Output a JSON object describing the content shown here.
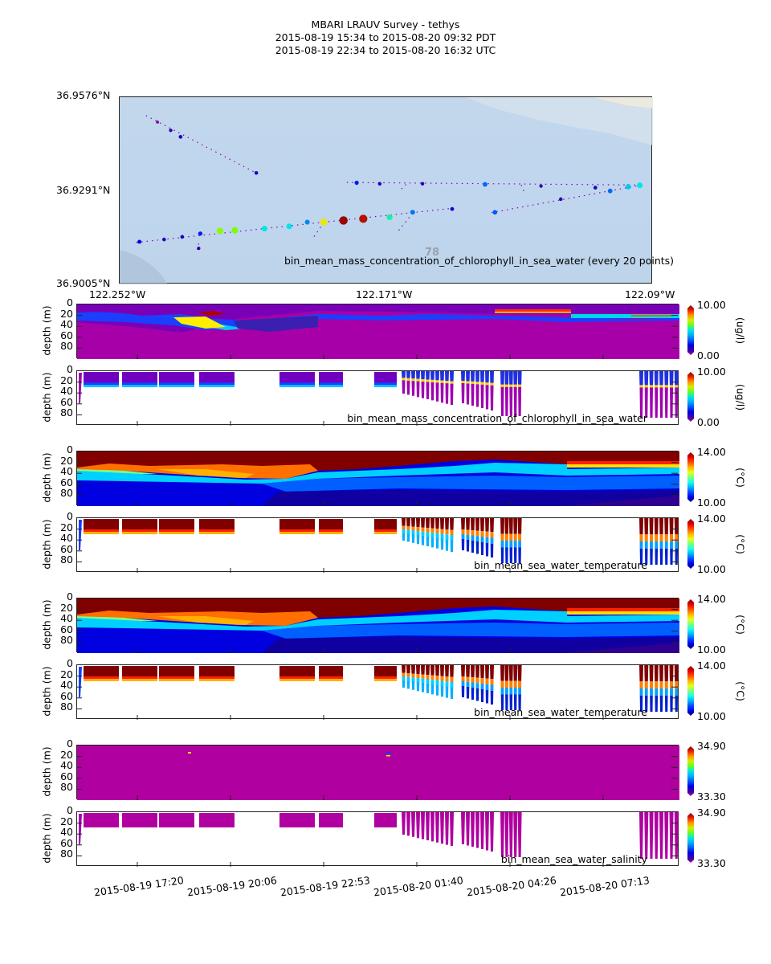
{
  "header": {
    "title": "MBARI LRAUV Survey - tethys",
    "pdt_range": "2015-08-19 15:34  to  2015-08-20 09:32 PDT",
    "utc_range": "2015-08-19 22:34  to  2015-08-20 16:32 UTC"
  },
  "chart_data": [
    {
      "type": "scatter",
      "title": "bin_mean_mass_concentration_of_chlorophyll_in_sea_water (every 20 points)",
      "lat_ticks": [
        "36.9576°N",
        "36.9291°N",
        "36.9005°N"
      ],
      "lon_ticks": [
        "122.252°W",
        "122.171°W",
        "122.09°W"
      ],
      "lat_range": [
        36.9005,
        36.9576
      ],
      "lon_range": [
        -122.252,
        -122.09
      ],
      "contour_label": "78",
      "points": [
        {
          "lon": -122.2405,
          "lat": 36.95,
          "v": 0.3
        },
        {
          "lon": -122.2365,
          "lat": 36.9475,
          "v": 1.0
        },
        {
          "lon": -122.2335,
          "lat": 36.9455,
          "v": 1.5
        },
        {
          "lon": -122.2105,
          "lat": 36.9345,
          "v": 1.4
        },
        {
          "lon": -122.18,
          "lat": 36.9315,
          "v": 2.3
        },
        {
          "lon": -122.173,
          "lat": 36.9312,
          "v": 1.3
        },
        {
          "lon": -122.16,
          "lat": 36.9312,
          "v": 1.2
        },
        {
          "lon": -122.141,
          "lat": 36.931,
          "v": 3.2
        },
        {
          "lon": -122.124,
          "lat": 36.9305,
          "v": 1.0
        },
        {
          "lon": -122.1075,
          "lat": 36.93,
          "v": 1.5
        },
        {
          "lon": -122.0975,
          "lat": 36.9303,
          "v": 4.5
        },
        {
          "lon": -122.094,
          "lat": 36.9307,
          "v": 5.0
        },
        {
          "lon": -122.103,
          "lat": 36.929,
          "v": 3.2
        },
        {
          "lon": -122.118,
          "lat": 36.9265,
          "v": 1.2
        },
        {
          "lon": -122.138,
          "lat": 36.9225,
          "v": 3.0
        },
        {
          "lon": -122.151,
          "lat": 36.9235,
          "v": 1.6
        },
        {
          "lon": -122.163,
          "lat": 36.9225,
          "v": 3.3
        },
        {
          "lon": -122.17,
          "lat": 36.921,
          "v": 5.3
        },
        {
          "lon": -122.178,
          "lat": 36.9205,
          "v": 9.5
        },
        {
          "lon": -122.184,
          "lat": 36.92,
          "v": 9.8
        },
        {
          "lon": -122.19,
          "lat": 36.9195,
          "v": 7.2
        },
        {
          "lon": -122.195,
          "lat": 36.9195,
          "v": 3.5
        },
        {
          "lon": -122.2005,
          "lat": 36.9182,
          "v": 5.0
        },
        {
          "lon": -122.208,
          "lat": 36.9175,
          "v": 5.0
        },
        {
          "lon": -122.217,
          "lat": 36.917,
          "v": 6.2
        },
        {
          "lon": -122.2215,
          "lat": 36.9168,
          "v": 6.4
        },
        {
          "lon": -122.2275,
          "lat": 36.916,
          "v": 2.3
        },
        {
          "lon": -122.233,
          "lat": 36.915,
          "v": 1.5
        },
        {
          "lon": -122.2385,
          "lat": 36.9142,
          "v": 1.4
        },
        {
          "lon": -122.246,
          "lat": 36.9135,
          "v": 1.9
        },
        {
          "lon": -122.228,
          "lat": 36.9115,
          "v": 1.0
        }
      ]
    },
    {
      "type": "heatmap",
      "variant": "interpolated",
      "ylabel": "depth (m)",
      "yticks": [
        "0",
        "20",
        "40",
        "60",
        "80"
      ],
      "colorbar": {
        "min": "0.00",
        "max": "10.00",
        "units": "(ug/l)",
        "cmap": "spectral"
      },
      "label": ""
    },
    {
      "type": "heatmap",
      "variant": "measured",
      "ylabel": "depth (m)",
      "yticks": [
        "0",
        "20",
        "40",
        "60",
        "80"
      ],
      "colorbar": {
        "min": "0.00",
        "max": "10.00",
        "units": "(ug/l)",
        "cmap": "spectral"
      },
      "label": "bin_mean_mass_concentration_of_chlorophyll_in_sea_water"
    },
    {
      "type": "heatmap",
      "variant": "interpolated",
      "ylabel": "depth (m)",
      "yticks": [
        "0",
        "20",
        "40",
        "60",
        "80"
      ],
      "colorbar": {
        "min": "10.00",
        "max": "14.00",
        "units": "(°C)",
        "cmap": "jet"
      },
      "label": ""
    },
    {
      "type": "heatmap",
      "variant": "measured",
      "ylabel": "depth (m)",
      "yticks": [
        "0",
        "20",
        "40",
        "60",
        "80"
      ],
      "colorbar": {
        "min": "10.00",
        "max": "14.00",
        "units": "(°C)",
        "cmap": "jet"
      },
      "label": "bin_mean_sea_water_temperature"
    },
    {
      "type": "heatmap",
      "variant": "interpolated",
      "ylabel": "depth (m)",
      "yticks": [
        "0",
        "20",
        "40",
        "60",
        "80"
      ],
      "colorbar": {
        "min": "10.00",
        "max": "14.00",
        "units": "(°C)",
        "cmap": "jet"
      },
      "label": ""
    },
    {
      "type": "heatmap",
      "variant": "measured",
      "ylabel": "depth (m)",
      "yticks": [
        "0",
        "20",
        "40",
        "60",
        "80"
      ],
      "colorbar": {
        "min": "10.00",
        "max": "14.00",
        "units": "(°C)",
        "cmap": "jet"
      },
      "label": "bin_mean_sea_water_temperature"
    },
    {
      "type": "heatmap",
      "variant": "interpolated",
      "ylabel": "depth (m)",
      "yticks": [
        "0",
        "20",
        "40",
        "60",
        "80"
      ],
      "colorbar": {
        "min": "33.30",
        "max": "34.90",
        "units": "",
        "cmap": "spectral"
      },
      "label": ""
    },
    {
      "type": "heatmap",
      "variant": "measured",
      "ylabel": "depth (m)",
      "yticks": [
        "0",
        "20",
        "40",
        "60",
        "80"
      ],
      "colorbar": {
        "min": "33.30",
        "max": "34.90",
        "units": "",
        "cmap": "spectral"
      },
      "label": "bin_mean_sea_water_salinity"
    }
  ],
  "time_axis": {
    "ticks": [
      "2015-08-19 17:20",
      "2015-08-19 20:06",
      "2015-08-19 22:53",
      "2015-08-20 01:40",
      "2015-08-20 04:26",
      "2015-08-20 07:13"
    ],
    "start_utc_hours": 22.567,
    "tick_hours": [
      24.333,
      27.1,
      29.883,
      32.667,
      35.433,
      38.217
    ],
    "end_utc_hours": 40.533
  },
  "colors": {
    "magenta": "#a800a8",
    "dark_red": "#800000",
    "axis": "#222222"
  }
}
